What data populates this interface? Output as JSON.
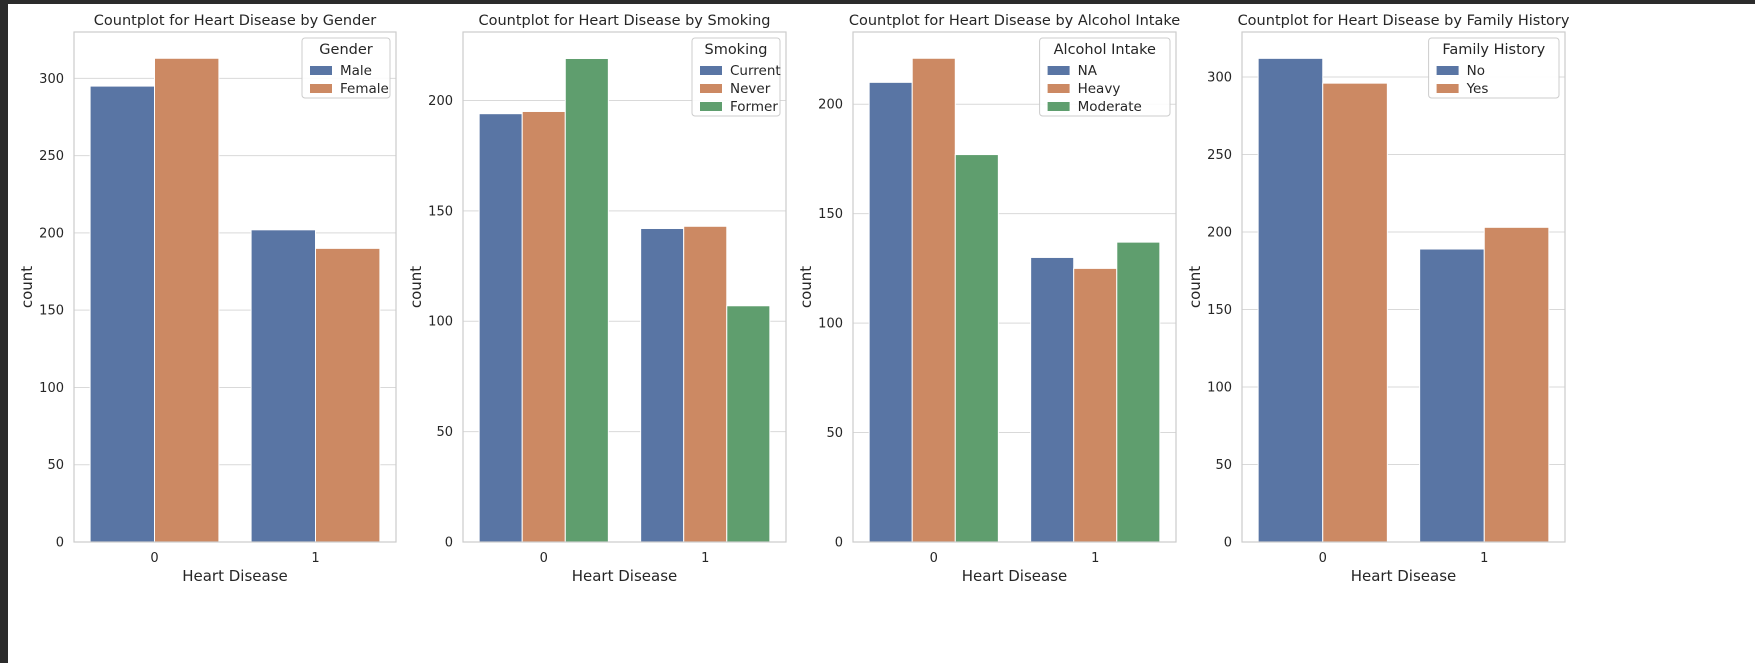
{
  "chart_data": [
    {
      "type": "bar",
      "title": "Countplot for Heart Disease by Gender",
      "xlabel": "Heart Disease",
      "ylabel": "count",
      "categories": [
        "0",
        "1"
      ],
      "ylim": [
        0,
        330
      ],
      "yticks": [
        0,
        50,
        100,
        150,
        200,
        250,
        300
      ],
      "grid": true,
      "legend_title": "Gender",
      "legend_position": "top-right",
      "series": [
        {
          "name": "Male",
          "color": "#5975a4",
          "values": [
            295,
            202
          ]
        },
        {
          "name": "Female",
          "color": "#cc8963",
          "values": [
            313,
            190
          ]
        }
      ]
    },
    {
      "type": "bar",
      "title": "Countplot for Heart Disease by Smoking",
      "xlabel": "Heart Disease",
      "ylabel": "count",
      "categories": [
        "0",
        "1"
      ],
      "ylim": [
        0,
        231
      ],
      "yticks": [
        0,
        50,
        100,
        150,
        200
      ],
      "grid": true,
      "legend_title": "Smoking",
      "legend_position": "top-right",
      "series": [
        {
          "name": "Current",
          "color": "#5975a4",
          "values": [
            194,
            142
          ]
        },
        {
          "name": "Never",
          "color": "#cc8963",
          "values": [
            195,
            143
          ]
        },
        {
          "name": "Former",
          "color": "#5f9e6e",
          "values": [
            219,
            107
          ]
        }
      ]
    },
    {
      "type": "bar",
      "title": "Countplot for Heart Disease by Alcohol Intake",
      "xlabel": "Heart Disease",
      "ylabel": "count",
      "categories": [
        "0",
        "1"
      ],
      "ylim": [
        0,
        233
      ],
      "yticks": [
        0,
        50,
        100,
        150,
        200
      ],
      "grid": true,
      "legend_title": "Alcohol Intake",
      "legend_position": "top-right",
      "series": [
        {
          "name": "NA",
          "color": "#5975a4",
          "values": [
            210,
            130
          ]
        },
        {
          "name": "Heavy",
          "color": "#cc8963",
          "values": [
            221,
            125
          ]
        },
        {
          "name": "Moderate",
          "color": "#5f9e6e",
          "values": [
            177,
            137
          ]
        }
      ]
    },
    {
      "type": "bar",
      "title": "Countplot for Heart Disease by Family History",
      "xlabel": "Heart Disease",
      "ylabel": "count",
      "categories": [
        "0",
        "1"
      ],
      "ylim": [
        0,
        329
      ],
      "yticks": [
        0,
        50,
        100,
        150,
        200,
        250,
        300
      ],
      "grid": true,
      "legend_title": "Family History",
      "legend_position": "top-right",
      "series": [
        {
          "name": "No",
          "color": "#5975a4",
          "values": [
            312,
            189
          ]
        },
        {
          "name": "Yes",
          "color": "#cc8963",
          "values": [
            296,
            203
          ]
        }
      ]
    }
  ]
}
